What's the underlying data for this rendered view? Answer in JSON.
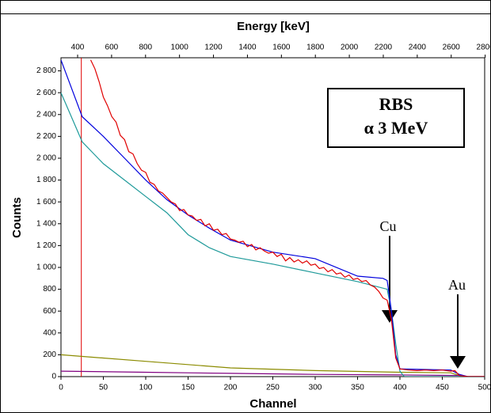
{
  "chart_data": {
    "type": "line",
    "xlabel": "Channel",
    "ylabel": "Counts",
    "x2label": "Energy [keV]",
    "xlim": [
      0,
      500
    ],
    "xticks": [
      0,
      50,
      100,
      150,
      200,
      250,
      300,
      350,
      400,
      450,
      500
    ],
    "x2lim": [
      302,
      2797
    ],
    "x2ticks": [
      400,
      600,
      800,
      1000,
      1200,
      1400,
      1600,
      1800,
      2000,
      2200,
      2400,
      2600,
      2800
    ],
    "ylim": [
      0,
      2920
    ],
    "yticks": [
      0,
      200,
      400,
      600,
      800,
      {
        "value": 1000,
        "label": "1 000"
      },
      {
        "value": 1200,
        "label": "1 200"
      },
      {
        "value": 1400,
        "label": "1 400"
      },
      {
        "value": 1600,
        "label": "1 600"
      },
      {
        "value": 1800,
        "label": "1 800"
      },
      {
        "value": 2000,
        "label": "2 000"
      },
      {
        "value": 2200,
        "label": "2 200"
      },
      {
        "value": 2400,
        "label": "2 400"
      },
      {
        "value": 2600,
        "label": "2 600"
      },
      {
        "value": 2800,
        "label": "2 800"
      }
    ],
    "vline": {
      "x": 24,
      "color": "#e00000"
    },
    "box_text": [
      "RBS",
      "α 3 MeV"
    ],
    "annotations": [
      "Cu",
      "Au"
    ],
    "series": [
      {
        "color": "#8b8b00",
        "x": [
          0,
          100,
          200,
          300,
          400,
          460,
          470,
          480,
          500
        ],
        "values": [
          200,
          140,
          80,
          55,
          40,
          35,
          10,
          0,
          0
        ]
      },
      {
        "color": "#800080",
        "x": [
          0,
          100,
          200,
          300,
          400,
          470,
          480,
          500
        ],
        "values": [
          50,
          40,
          30,
          20,
          15,
          10,
          0,
          0
        ]
      },
      {
        "color": "#1f9a9a",
        "x": [
          0,
          25,
          50,
          75,
          100,
          125,
          150,
          175,
          200,
          250,
          300,
          350,
          385,
          390,
          395,
          400,
          405,
          500
        ],
        "values": [
          2600,
          2150,
          1950,
          1800,
          1650,
          1500,
          1300,
          1180,
          1100,
          1030,
          950,
          870,
          800,
          600,
          300,
          50,
          0,
          0
        ]
      },
      {
        "color": "#0000dd",
        "x": [
          0,
          25,
          50,
          75,
          100,
          125,
          150,
          175,
          200,
          250,
          300,
          350,
          380,
          385,
          390,
          395,
          400,
          460,
          470,
          480,
          500
        ],
        "values": [
          2900,
          2380,
          2200,
          2000,
          1800,
          1620,
          1480,
          1360,
          1250,
          1140,
          1080,
          920,
          900,
          880,
          600,
          200,
          70,
          60,
          20,
          0,
          0
        ]
      },
      {
        "color": "#e00000",
        "x": [
          35,
          40,
          45,
          50,
          55,
          60,
          65,
          70,
          75,
          80,
          85,
          90,
          95,
          100,
          105,
          110,
          115,
          120,
          125,
          130,
          135,
          140,
          145,
          150,
          155,
          160,
          165,
          170,
          175,
          180,
          185,
          190,
          195,
          200,
          205,
          210,
          215,
          220,
          225,
          230,
          235,
          240,
          245,
          250,
          255,
          260,
          265,
          270,
          275,
          280,
          285,
          290,
          295,
          300,
          305,
          310,
          315,
          320,
          325,
          330,
          335,
          340,
          345,
          350,
          355,
          360,
          365,
          370,
          375,
          380,
          385,
          390,
          395,
          400,
          410,
          420,
          430,
          440,
          450,
          460,
          465,
          470,
          480,
          500
        ],
        "values": [
          2900,
          2820,
          2700,
          2560,
          2480,
          2380,
          2330,
          2210,
          2170,
          2060,
          2040,
          1950,
          1890,
          1870,
          1780,
          1760,
          1700,
          1680,
          1640,
          1600,
          1580,
          1520,
          1530,
          1480,
          1470,
          1430,
          1440,
          1380,
          1400,
          1340,
          1350,
          1300,
          1310,
          1260,
          1250,
          1230,
          1240,
          1190,
          1210,
          1160,
          1180,
          1150,
          1130,
          1140,
          1100,
          1120,
          1060,
          1090,
          1050,
          1070,
          1040,
          1060,
          1020,
          1030,
          990,
          1000,
          960,
          980,
          940,
          950,
          910,
          930,
          890,
          900,
          870,
          880,
          840,
          820,
          780,
          720,
          700,
          520,
          170,
          70,
          60,
          55,
          60,
          55,
          60,
          50,
          55,
          10,
          0,
          0
        ]
      }
    ]
  }
}
